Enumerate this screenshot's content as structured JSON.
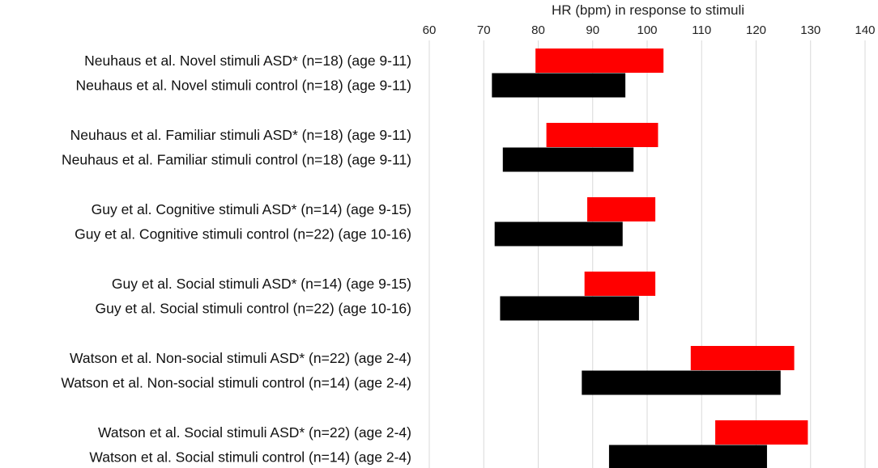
{
  "chart_data": {
    "type": "bar",
    "orientation": "horizontal-floating-range",
    "title": "HR (bpm) in response to stimuli",
    "xlabel": "HR (bpm) in response to stimuli",
    "ylabel": "",
    "xlim": [
      60,
      140
    ],
    "x_ticks": [
      "60",
      "70",
      "80",
      "90",
      "100",
      "110",
      "120",
      "130",
      "140"
    ],
    "grid": true,
    "colors": {
      "asd": "#ff0000",
      "control": "#000000"
    },
    "categories": [
      {
        "label": "Neuhaus et al. Novel stimuli ASD* (n=18) (age 9-11)",
        "group": "asd",
        "low": 79.5,
        "high": 103.0
      },
      {
        "label": "Neuhaus et al. Novel stimuli control (n=18) (age 9-11)",
        "group": "control",
        "low": 71.5,
        "high": 96.0
      },
      {
        "label": "Neuhaus et al. Familiar stimuli ASD* (n=18) (age 9-11)",
        "group": "asd",
        "low": 81.5,
        "high": 102.0
      },
      {
        "label": "Neuhaus et al. Familiar stimuli control (n=18) (age 9-11)",
        "group": "control",
        "low": 73.5,
        "high": 97.5
      },
      {
        "label": "Guy et al. Cognitive stimuli ASD* (n=14) (age 9-15)",
        "group": "asd",
        "low": 89.0,
        "high": 101.5
      },
      {
        "label": "Guy et al. Cognitive stimuli control (n=22) (age 10-16)",
        "group": "control",
        "low": 72.0,
        "high": 95.5
      },
      {
        "label": "Guy et al. Social stimuli ASD* (n=14) (age 9-15)",
        "group": "asd",
        "low": 88.5,
        "high": 101.5
      },
      {
        "label": "Guy et al. Social stimuli control (n=22) (age 10-16)",
        "group": "control",
        "low": 73.0,
        "high": 98.5
      },
      {
        "label": "Watson et al. Non-social stimuli ASD* (n=22) (age 2-4)",
        "group": "asd",
        "low": 108.0,
        "high": 127.0
      },
      {
        "label": "Watson et al. Non-social stimuli control (n=14) (age 2-4)",
        "group": "control",
        "low": 88.0,
        "high": 124.5
      },
      {
        "label": "Watson et al. Social stimuli ASD* (n=22) (age 2-4)",
        "group": "asd",
        "low": 112.5,
        "high": 129.5
      },
      {
        "label": "Watson et al. Social stimuli control (n=14) (age 2-4)",
        "group": "control",
        "low": 93.0,
        "high": 122.0
      }
    ]
  }
}
